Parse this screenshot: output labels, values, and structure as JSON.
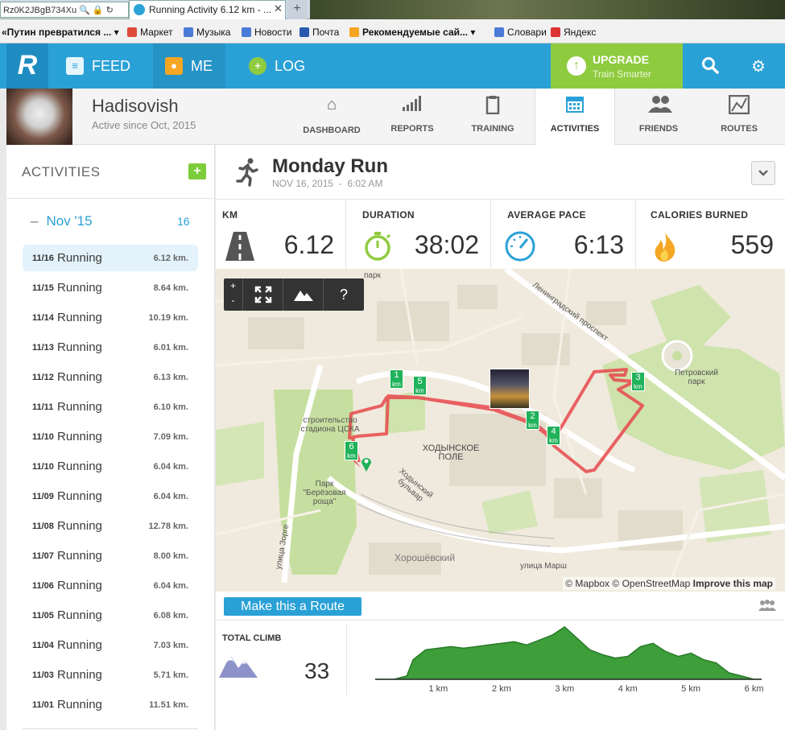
{
  "browser": {
    "url_fragment": "Rz0K2JBgB734Xu",
    "tab_title": "Running Activity 6.12 km - ...",
    "tab_close": "✕",
    "new_tab": "+"
  },
  "bookmarks": [
    {
      "label": "«Путин превратился ...",
      "bold": true,
      "dropdown": true
    },
    {
      "label": "Маркет"
    },
    {
      "label": "Музыка"
    },
    {
      "label": "Новости"
    },
    {
      "label": "Почта"
    },
    {
      "label": "Рекомендуемые сай...",
      "bold": true,
      "dropdown": true
    },
    {
      "label": "Словари"
    },
    {
      "label": "Яндекс"
    }
  ],
  "nav": {
    "feed": "FEED",
    "me": "ME",
    "log": "LOG",
    "upgrade_title": "UPGRADE",
    "upgrade_sub": "Train Smarter"
  },
  "profile": {
    "name": "Hadisovish",
    "since": "Active since Oct, 2015",
    "tabs": [
      "DASHBOARD",
      "REPORTS",
      "TRAINING",
      "ACTIVITIES",
      "FRIENDS",
      "ROUTES"
    ],
    "active_tab": "ACTIVITIES"
  },
  "sidebar": {
    "title": "ACTIVITIES",
    "add": "+",
    "month": "Nov '15",
    "month_collapse": "–",
    "month_count": "16",
    "items": [
      {
        "date": "11/16",
        "type": "Running",
        "km": "6.12 km.",
        "selected": true
      },
      {
        "date": "11/15",
        "type": "Running",
        "km": "8.64 km."
      },
      {
        "date": "11/14",
        "type": "Running",
        "km": "10.19 km."
      },
      {
        "date": "11/13",
        "type": "Running",
        "km": "6.01 km."
      },
      {
        "date": "11/12",
        "type": "Running",
        "km": "6.13 km."
      },
      {
        "date": "11/11",
        "type": "Running",
        "km": "6.10 km."
      },
      {
        "date": "11/10",
        "type": "Running",
        "km": "7.09 km."
      },
      {
        "date": "11/10",
        "type": "Running",
        "km": "6.04 km."
      },
      {
        "date": "11/09",
        "type": "Running",
        "km": "6.04 km."
      },
      {
        "date": "11/08",
        "type": "Running",
        "km": "12.78 km."
      },
      {
        "date": "11/07",
        "type": "Running",
        "km": "8.00 km."
      },
      {
        "date": "11/06",
        "type": "Running",
        "km": "6.04 km."
      },
      {
        "date": "11/05",
        "type": "Running",
        "km": "6.08 km."
      },
      {
        "date": "11/04",
        "type": "Running",
        "km": "7.03 km."
      },
      {
        "date": "11/03",
        "type": "Running",
        "km": "5.71 km."
      },
      {
        "date": "11/01",
        "type": "Running",
        "km": "11.51 km."
      }
    ]
  },
  "activity": {
    "title": "Monday Run",
    "date": "NOV 16, 2015",
    "sep": "-",
    "time": "6:02 AM",
    "dropdown": "⌄",
    "stats": [
      {
        "label": "KM",
        "value": "6.12",
        "icon": "road-icon"
      },
      {
        "label": "DURATION",
        "value": "38:02",
        "icon": "stopwatch-icon"
      },
      {
        "label": "AVERAGE PACE",
        "value": "6:13",
        "icon": "speedometer-icon"
      },
      {
        "label": "CALORIES BURNED",
        "value": "559",
        "icon": "flame-icon"
      }
    ]
  },
  "map": {
    "controls": {
      "zoom_in": "+",
      "zoom_out": "-",
      "fullscreen": "⛶",
      "terrain": "⛰",
      "help": "?"
    },
    "attribution_mapbox": "© Mapbox",
    "attribution_osm": "© OpenStreetMap",
    "attribution_improve": "Improve this map",
    "labels": {
      "park": "парк",
      "prospect": "Ленинградский проспект",
      "petrovsky": "Петровский парк",
      "stadium": "строительство стадиона ЦСКА",
      "khodynskoe": "ХОДЫНСКОЕ ПОЛЕ",
      "boulevard": "Ходынский бульвар",
      "birch": "Парк \"Берёзовая роща\"",
      "zorge": "улица Зорге",
      "khoroshevsky": "Хорошёвский",
      "marshala": "улица Марш"
    },
    "km_markers": [
      {
        "n": "1",
        "u": "km"
      },
      {
        "n": "5",
        "u": "km"
      },
      {
        "n": "2",
        "u": "km"
      },
      {
        "n": "4",
        "u": "km"
      },
      {
        "n": "3",
        "u": "km"
      },
      {
        "n": "6",
        "u": "km"
      }
    ]
  },
  "route_button": "Make this a Route",
  "climb": {
    "label": "TOTAL CLIMB",
    "value": "33"
  },
  "chart_data": {
    "type": "area",
    "title": "",
    "xlabel": "",
    "ylabel": "",
    "x_ticks": [
      "1 km",
      "2 km",
      "3 km",
      "4 km",
      "5 km",
      "6 km"
    ],
    "xlim": [
      0,
      6.12
    ],
    "series": [
      {
        "color": "#3d9e3a",
        "x": [
          0,
          0.3,
          0.5,
          0.6,
          0.8,
          1.0,
          1.2,
          1.4,
          1.6,
          1.8,
          2.0,
          2.2,
          2.4,
          2.6,
          2.8,
          3.0,
          3.2,
          3.4,
          3.6,
          3.8,
          4.0,
          4.2,
          4.4,
          4.6,
          4.8,
          5.0,
          5.2,
          5.4,
          5.6,
          5.8,
          6.0,
          6.12
        ],
        "y": [
          0,
          0,
          2,
          12,
          18,
          19,
          20,
          19,
          20,
          21,
          22,
          23,
          21,
          24,
          27,
          32,
          25,
          18,
          15,
          13,
          14,
          20,
          22,
          17,
          14,
          16,
          12,
          10,
          4,
          2,
          0,
          0
        ]
      }
    ]
  },
  "colors": {
    "brand": "#2aa1d6",
    "upgrade": "#8fcb3f",
    "route": "#e8484c",
    "marker": "#1fb25a"
  }
}
